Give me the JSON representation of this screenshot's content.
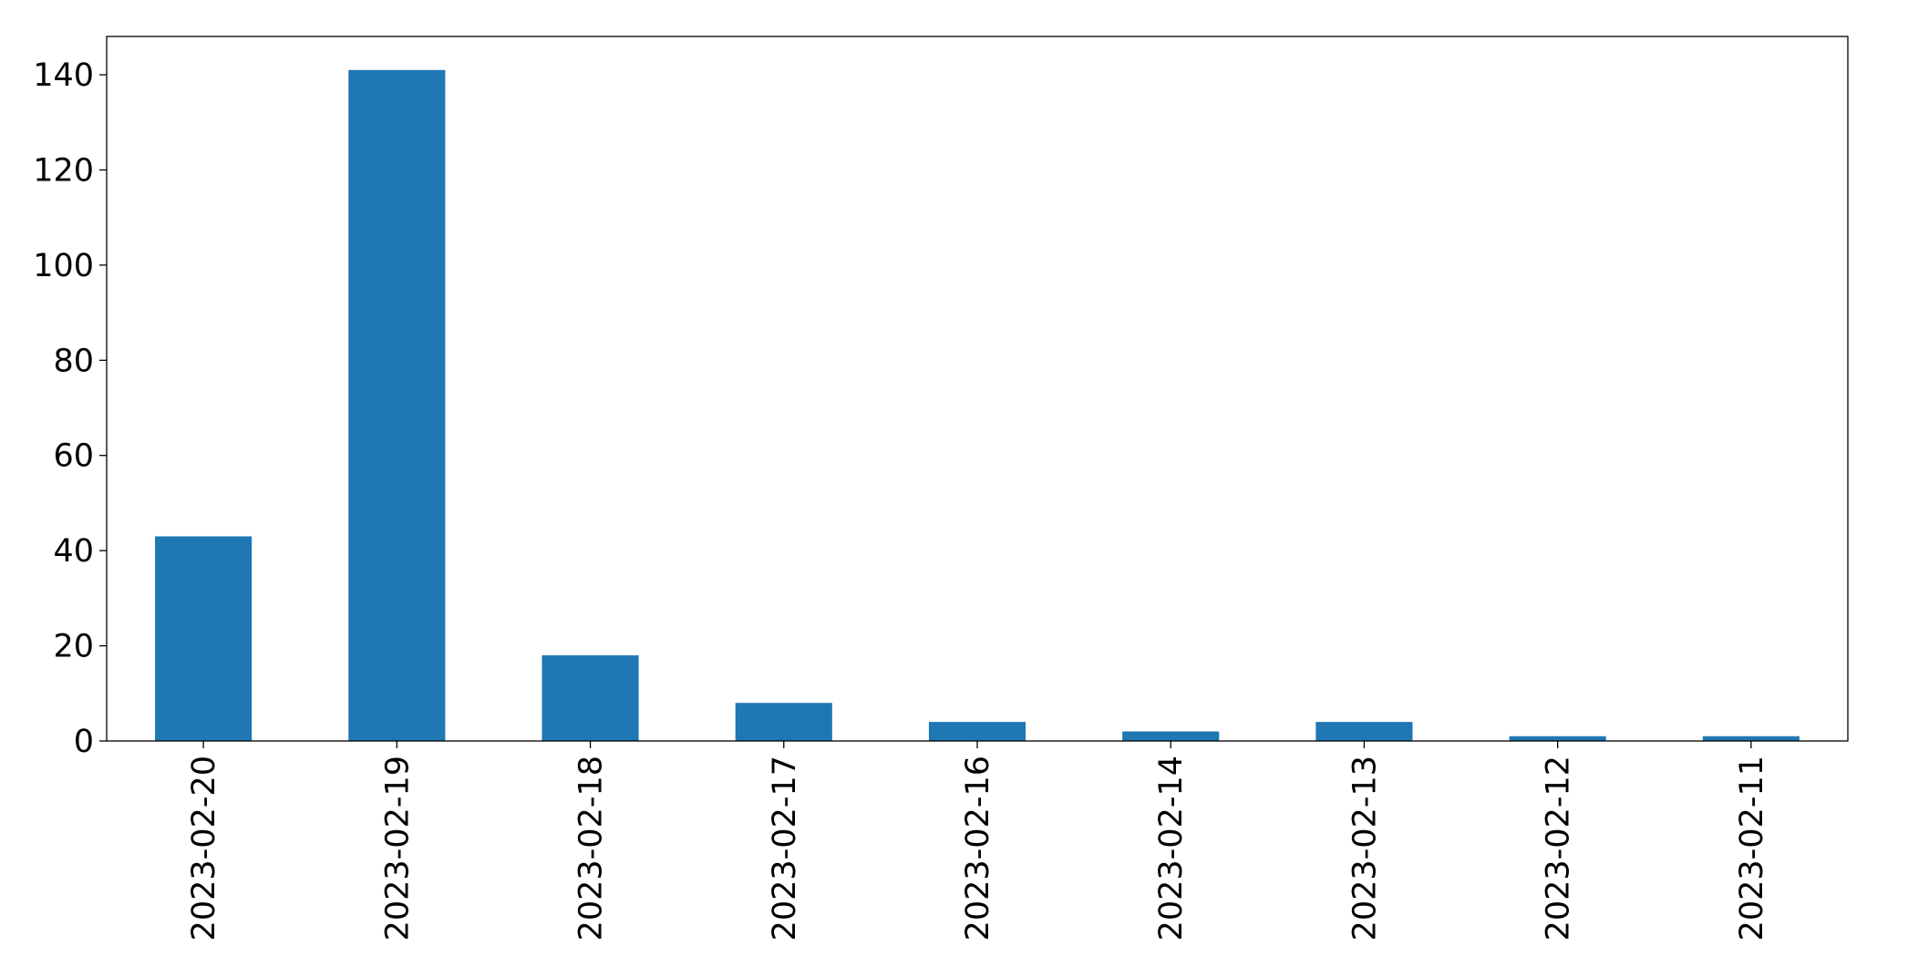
{
  "chart_data": {
    "type": "bar",
    "categories": [
      "2023-02-20",
      "2023-02-19",
      "2023-02-18",
      "2023-02-17",
      "2023-02-16",
      "2023-02-14",
      "2023-02-13",
      "2023-02-12",
      "2023-02-11"
    ],
    "values": [
      43,
      141,
      18,
      8,
      4,
      2,
      4,
      1,
      1
    ],
    "color": "#1f77b4",
    "ylim": [
      0,
      148.05
    ],
    "yticks": [
      0,
      20,
      40,
      60,
      80,
      100,
      120,
      140
    ],
    "grid": false
  }
}
